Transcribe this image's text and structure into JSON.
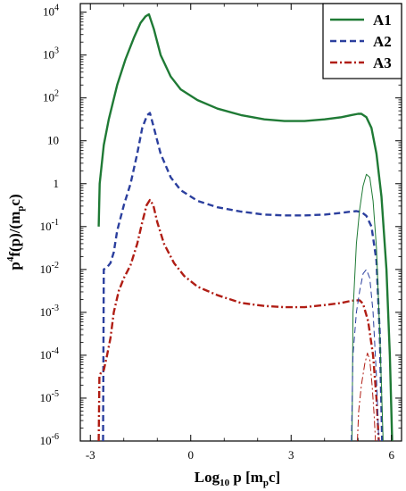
{
  "chart_data": {
    "type": "line",
    "xlabel": "Log₁₀ p [mₚc]",
    "ylabel": "p⁴f(p)/(mₚc)",
    "xlim": [
      -3.3,
      6.3
    ],
    "ylim_log10": [
      -6,
      4.2
    ],
    "y_scale": "log",
    "grid": false,
    "legend_position": "top-right",
    "x_ticks": [
      {
        "value": -3,
        "label": "-3"
      },
      {
        "value": 0,
        "label": "0"
      },
      {
        "value": 3,
        "label": "3"
      },
      {
        "value": 6,
        "label": "6"
      }
    ],
    "y_ticks": [
      {
        "value": -6,
        "base": "10",
        "exp": "-6"
      },
      {
        "value": -5,
        "base": "10",
        "exp": "-5"
      },
      {
        "value": -4,
        "base": "10",
        "exp": "-4"
      },
      {
        "value": -3,
        "base": "10",
        "exp": "-3"
      },
      {
        "value": -2,
        "base": "10",
        "exp": "-2"
      },
      {
        "value": -1,
        "base": "10",
        "exp": "-1"
      },
      {
        "value": 0,
        "base": "1",
        "exp": ""
      },
      {
        "value": 1,
        "base": "10",
        "exp": ""
      },
      {
        "value": 2,
        "base": "10",
        "exp": "2"
      },
      {
        "value": 3,
        "base": "10",
        "exp": "3"
      },
      {
        "value": 4,
        "base": "10",
        "exp": "4"
      }
    ],
    "series": [
      {
        "name": "A1",
        "color": "#1f7a35",
        "dash": "solid",
        "x": [
          -2.75,
          -2.72,
          -2.6,
          -2.45,
          -2.2,
          -1.95,
          -1.7,
          -1.5,
          -1.35,
          -1.25,
          -1.1,
          -0.9,
          -0.6,
          -0.3,
          0.2,
          0.8,
          1.5,
          2.2,
          2.8,
          3.4,
          4.0,
          4.5,
          4.8,
          5.0,
          5.1,
          5.25,
          5.4,
          5.55,
          5.7,
          5.85,
          5.95,
          6.02
        ],
        "log10_y": [
          -1.0,
          0.0,
          0.9,
          1.5,
          2.3,
          2.9,
          3.4,
          3.75,
          3.9,
          3.95,
          3.6,
          3.0,
          2.5,
          2.2,
          1.95,
          1.75,
          1.6,
          1.5,
          1.46,
          1.46,
          1.5,
          1.55,
          1.6,
          1.63,
          1.63,
          1.55,
          1.3,
          0.7,
          -0.3,
          -2.0,
          -4.0,
          -6.0
        ]
      },
      {
        "name": "A2",
        "color": "#2b3f9e",
        "dash": "dashed",
        "x": [
          -2.62,
          -2.6,
          -2.5,
          -2.4,
          -2.3,
          -2.2,
          -2.0,
          -1.8,
          -1.6,
          -1.45,
          -1.3,
          -1.22,
          -1.1,
          -0.9,
          -0.6,
          -0.3,
          0.2,
          0.8,
          1.5,
          2.2,
          2.8,
          3.4,
          4.0,
          4.5,
          4.8,
          4.95,
          5.1,
          5.25,
          5.4,
          5.55,
          5.65,
          5.72
        ],
        "log10_y": [
          -6.0,
          -2.0,
          -1.95,
          -1.85,
          -1.6,
          -1.1,
          -0.5,
          0.0,
          0.7,
          1.3,
          1.6,
          1.65,
          1.3,
          0.7,
          0.15,
          -0.15,
          -0.4,
          -0.55,
          -0.65,
          -0.72,
          -0.74,
          -0.74,
          -0.72,
          -0.68,
          -0.65,
          -0.64,
          -0.66,
          -0.75,
          -1.0,
          -1.8,
          -3.5,
          -6.0
        ]
      },
      {
        "name": "A3",
        "color": "#b01d14",
        "dash": "dashdot",
        "x": [
          -2.75,
          -2.73,
          -2.68,
          -2.6,
          -2.5,
          -2.4,
          -2.3,
          -2.15,
          -2.0,
          -1.8,
          -1.6,
          -1.45,
          -1.32,
          -1.22,
          -1.12,
          -1.0,
          -0.8,
          -0.5,
          -0.2,
          0.2,
          0.8,
          1.5,
          2.2,
          2.8,
          3.4,
          4.0,
          4.5,
          4.8,
          4.95,
          5.05,
          5.15,
          5.3,
          5.45,
          5.55,
          5.62
        ],
        "log10_y": [
          -6.0,
          -4.5,
          -4.4,
          -4.35,
          -4.0,
          -3.6,
          -3.0,
          -2.5,
          -2.2,
          -1.9,
          -1.4,
          -0.9,
          -0.5,
          -0.38,
          -0.5,
          -0.9,
          -1.4,
          -1.85,
          -2.15,
          -2.4,
          -2.6,
          -2.78,
          -2.85,
          -2.88,
          -2.88,
          -2.83,
          -2.78,
          -2.73,
          -2.72,
          -2.72,
          -2.8,
          -3.2,
          -4.0,
          -5.0,
          -6.0
        ]
      },
      {
        "name": "",
        "color": "#1f7a35",
        "dash": "solid",
        "thin": true,
        "x": [
          4.82,
          4.85,
          4.95,
          5.05,
          5.15,
          5.25,
          5.35,
          5.45,
          5.55,
          5.65,
          5.75
        ],
        "log10_y": [
          -6.0,
          -3.0,
          -1.4,
          -0.6,
          -0.05,
          0.22,
          0.15,
          -0.4,
          -1.5,
          -3.5,
          -6.0
        ]
      },
      {
        "name": "",
        "color": "#2b3f9e",
        "dash": "dashed",
        "thin": true,
        "x": [
          4.8,
          4.85,
          4.95,
          5.05,
          5.15,
          5.25,
          5.35,
          5.45,
          5.55,
          5.62
        ],
        "log10_y": [
          -6.0,
          -4.0,
          -3.0,
          -2.5,
          -2.1,
          -2.0,
          -2.2,
          -3.0,
          -4.5,
          -6.0
        ]
      },
      {
        "name": "",
        "color": "#b01d14",
        "dash": "dashdot",
        "thin": true,
        "x": [
          4.98,
          5.02,
          5.1,
          5.2,
          5.28,
          5.35,
          5.42,
          5.48,
          5.52
        ],
        "log10_y": [
          -6.0,
          -5.3,
          -4.7,
          -4.2,
          -3.95,
          -4.1,
          -4.7,
          -5.4,
          -6.0
        ]
      }
    ]
  }
}
